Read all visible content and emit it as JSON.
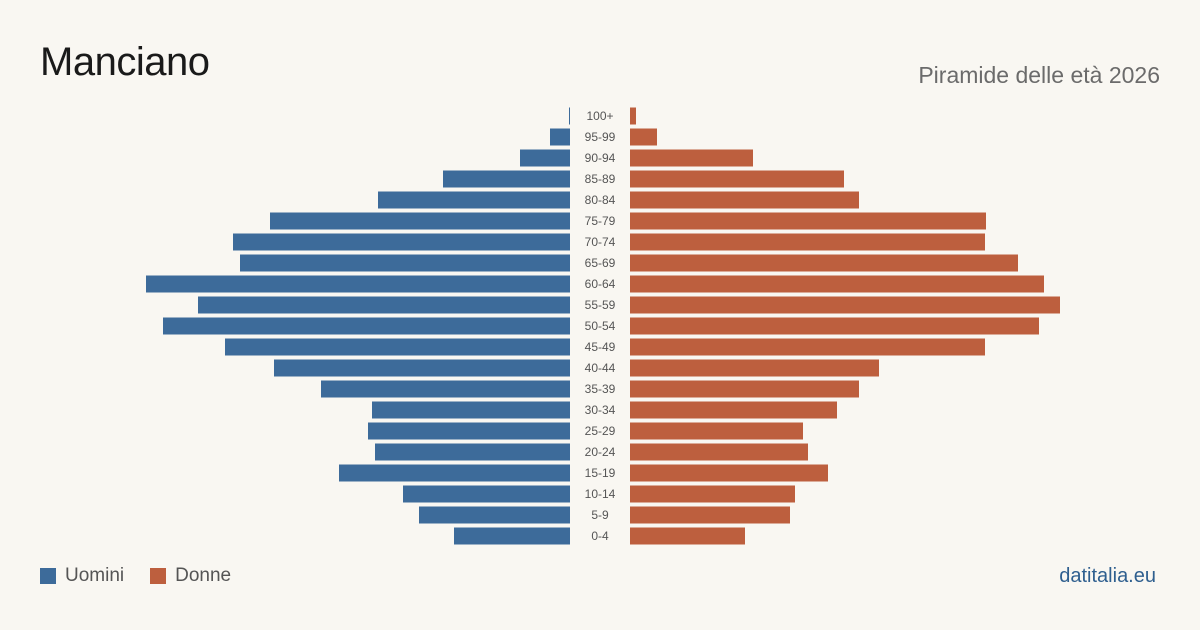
{
  "title": "Manciano",
  "subtitle": "Piramide delle età 2026",
  "brand": "datitalia.eu",
  "colors": {
    "men": "#3d6b9a",
    "women": "#bd5f3e"
  },
  "legend": {
    "men": "Uomini",
    "women": "Donne"
  },
  "chart_data": {
    "type": "bar",
    "orientation": "horizontal-pyramid",
    "categories": [
      "100+",
      "95-99",
      "90-94",
      "85-89",
      "80-84",
      "75-79",
      "70-74",
      "65-69",
      "60-64",
      "55-59",
      "50-54",
      "45-49",
      "40-44",
      "35-39",
      "30-34",
      "25-29",
      "20-24",
      "15-19",
      "10-14",
      "5-9",
      "0-4"
    ],
    "series": [
      {
        "name": "Uomini",
        "values": [
          1,
          20,
          50,
          127,
          192,
          300,
          337,
          330,
          424,
          372,
          407,
          345,
          296,
          249,
          198,
          202,
          195,
          231,
          167,
          151,
          116
        ]
      },
      {
        "name": "Donne",
        "values": [
          6,
          27,
          123,
          214,
          229,
          356,
          355,
          388,
          414,
          430,
          409,
          355,
          249,
          229,
          207,
          173,
          178,
          198,
          165,
          160,
          115
        ]
      }
    ]
  }
}
